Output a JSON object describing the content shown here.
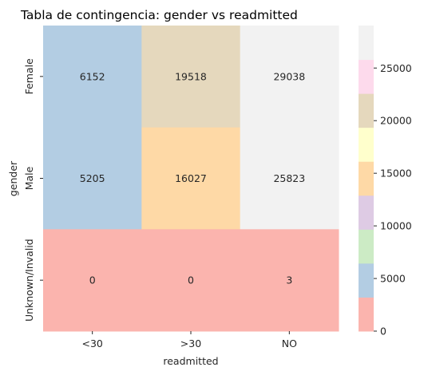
{
  "chart_data": {
    "type": "heatmap",
    "title": "Tabla de contingencia: gender vs readmitted",
    "xlabel": "readmitted",
    "ylabel": "gender",
    "x_categories": [
      "<30",
      ">30",
      "NO"
    ],
    "y_categories": [
      "Female",
      "Male",
      "Unknown/Invalid"
    ],
    "values": [
      [
        6152,
        19518,
        29038
      ],
      [
        5205,
        16027,
        25823
      ],
      [
        0,
        0,
        3
      ]
    ],
    "colormap": "Pastel1",
    "colors": [
      "#fbb4ae",
      "#b3cde3",
      "#ccebc5",
      "#decbe4",
      "#fed9a6",
      "#ffffcc",
      "#e5d8bd",
      "#fddaec",
      "#f2f2f2"
    ],
    "value_range": [
      0,
      29038
    ],
    "colorbar_ticks": [
      "0",
      "5000",
      "10000",
      "15000",
      "20000",
      "25000"
    ],
    "colorbar_tick_values": [
      0,
      5000,
      10000,
      15000,
      20000,
      25000
    ],
    "annotations": true
  }
}
